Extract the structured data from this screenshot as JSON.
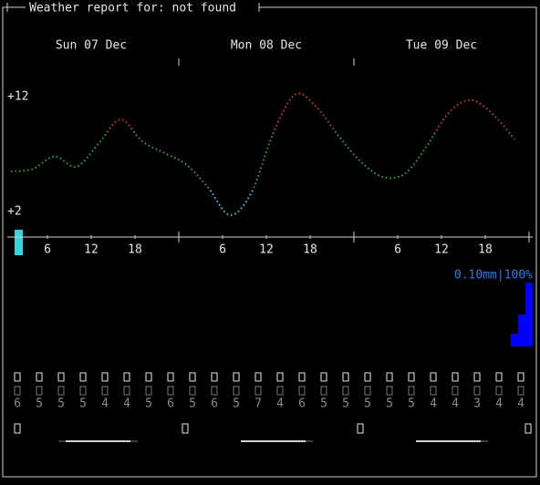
{
  "header": {
    "title": "Weather report for: not found"
  },
  "days": [
    "Sun 07 Dec",
    "Mon 08 Dec",
    "Tue 09 Dec"
  ],
  "chart_data": {
    "type": "line",
    "x": [
      1,
      4,
      7,
      10,
      13,
      16,
      19,
      22,
      25,
      28,
      31,
      34,
      37,
      40,
      43,
      46,
      49,
      52,
      55,
      58,
      61,
      64,
      67,
      70
    ],
    "series": [
      {
        "values": [
          5.5,
          5.7,
          6.8,
          5.9,
          7.9,
          10.0,
          8.1,
          7.1,
          6.1,
          4.1,
          1.7,
          3.7,
          8.9,
          12.2,
          11.0,
          8.5,
          6.3,
          5.0,
          5.3,
          7.7,
          10.6,
          11.7,
          10.5,
          8.3
        ]
      }
    ],
    "xlim": [
      0,
      72
    ],
    "xticks": [
      6,
      12,
      18,
      {
        "value": 30,
        "label": "6"
      },
      {
        "value": 36,
        "label": "12"
      },
      {
        "value": 42,
        "label": "18"
      },
      {
        "value": 54,
        "label": "6"
      },
      {
        "value": 60,
        "label": "12"
      },
      {
        "value": 66,
        "label": "18"
      }
    ],
    "ylim": [
      2,
      12
    ],
    "yticks": [
      {
        "value": 12,
        "label": "+12"
      },
      {
        "value": 2,
        "label": "+2"
      }
    ]
  },
  "precipitation": {
    "label": "0.10mm|100%",
    "max": 0.1,
    "values": [
      0.02,
      0.05,
      0.1
    ]
  },
  "wind_speeds": [
    6,
    5,
    5,
    5,
    4,
    4,
    5,
    6,
    5,
    6,
    5,
    7,
    4,
    6,
    5,
    5,
    5,
    5,
    5,
    4,
    4,
    3,
    4,
    4
  ]
}
